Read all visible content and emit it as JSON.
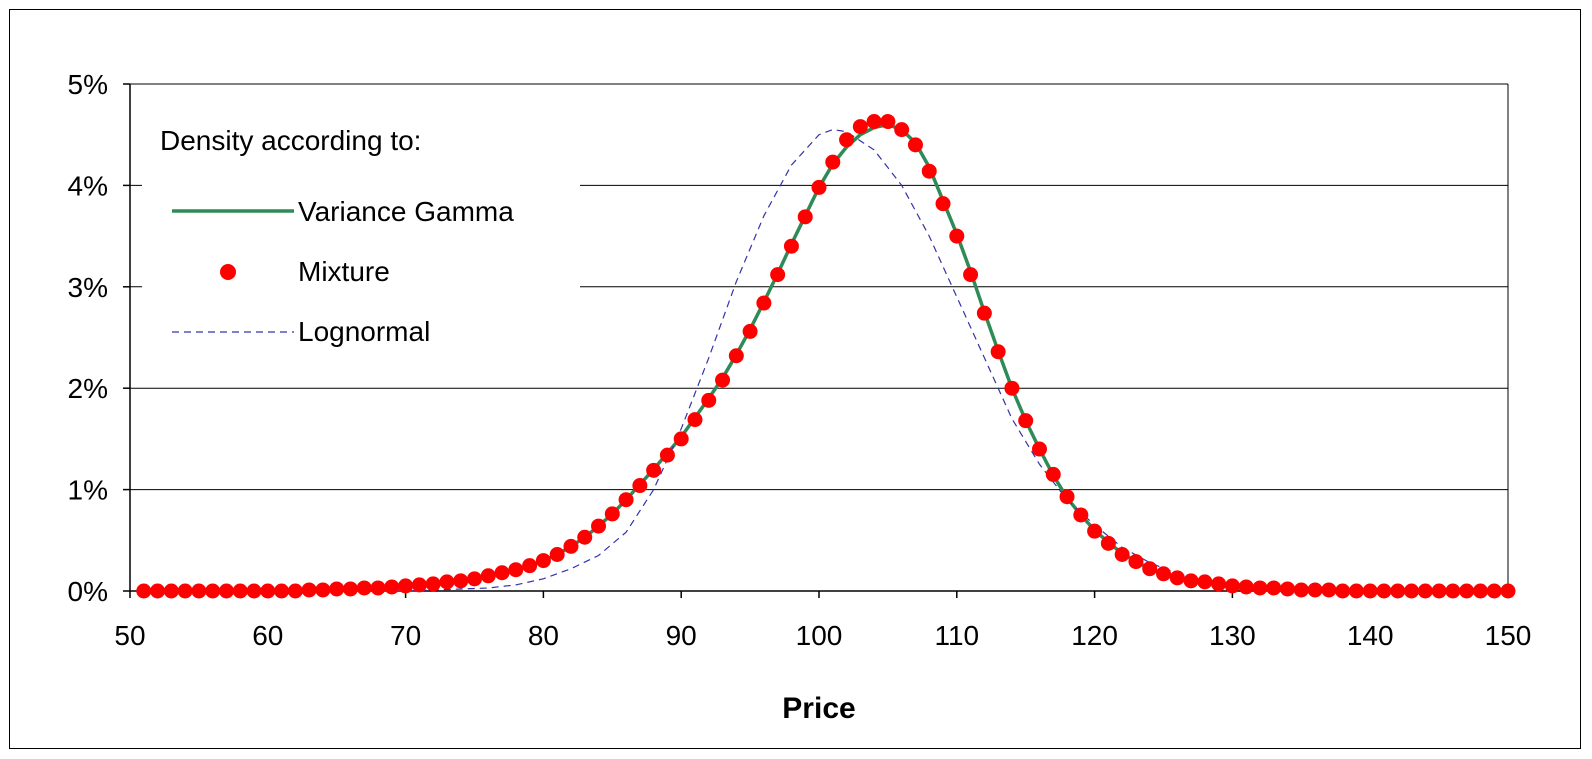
{
  "chart_data": {
    "type": "line",
    "title": "",
    "xlabel": "Price",
    "ylabel": "",
    "xlim": [
      50,
      150
    ],
    "ylim": [
      0,
      0.05
    ],
    "x_ticks": [
      50,
      60,
      70,
      80,
      90,
      100,
      110,
      120,
      130,
      140,
      150
    ],
    "y_ticks": [
      0,
      0.01,
      0.02,
      0.03,
      0.04,
      0.05
    ],
    "x_tick_labels": [
      "50",
      "60",
      "70",
      "80",
      "90",
      "100",
      "110",
      "120",
      "130",
      "140",
      "150"
    ],
    "y_tick_labels": [
      "0%",
      "1%",
      "2%",
      "3%",
      "4%",
      "5%"
    ],
    "grid": "horizontal",
    "legend": {
      "title": "Density according to:",
      "placement": "top-left",
      "entries": [
        "Variance Gamma",
        "Mixture",
        "Lognormal"
      ]
    },
    "series": [
      {
        "name": "Variance Gamma",
        "style": "line",
        "color": "#2e8b57",
        "x": [
          51,
          52,
          53,
          54,
          55,
          56,
          57,
          58,
          59,
          60,
          61,
          62,
          63,
          64,
          65,
          66,
          67,
          68,
          69,
          70,
          71,
          72,
          73,
          74,
          75,
          76,
          77,
          78,
          79,
          80,
          81,
          82,
          83,
          84,
          85,
          86,
          87,
          88,
          89,
          90,
          91,
          92,
          93,
          94,
          95,
          96,
          97,
          98,
          99,
          100,
          101,
          102,
          103,
          104,
          105,
          106,
          107,
          108,
          109,
          110,
          111,
          112,
          113,
          114,
          115,
          116,
          117,
          118,
          119,
          120,
          121,
          122,
          123,
          124,
          125,
          126,
          127,
          128,
          129,
          130,
          131,
          132,
          133,
          134,
          135,
          136,
          137,
          138,
          139,
          140,
          141,
          142,
          143,
          144,
          145,
          146,
          147,
          148,
          149,
          150
        ],
        "y": [
          0.0,
          0.0,
          0.0,
          0.0,
          0.0,
          0.0,
          0.0,
          0.0,
          0.0,
          0.0,
          0.0,
          0.0,
          0.0001,
          0.0001,
          0.0002,
          0.0002,
          0.0003,
          0.0003,
          0.0004,
          0.0005,
          0.0006,
          0.0007,
          0.0008,
          0.001,
          0.0012,
          0.0015,
          0.0018,
          0.0021,
          0.0025,
          0.003,
          0.0036,
          0.0044,
          0.0053,
          0.0064,
          0.0076,
          0.009,
          0.0105,
          0.012,
          0.0136,
          0.0152,
          0.0171,
          0.019,
          0.021,
          0.0233,
          0.0258,
          0.0285,
          0.0313,
          0.0342,
          0.037,
          0.0398,
          0.0421,
          0.0438,
          0.045,
          0.0457,
          0.046,
          0.0455,
          0.0442,
          0.0418,
          0.0385,
          0.0352,
          0.0315,
          0.0275,
          0.0237,
          0.02,
          0.0168,
          0.014,
          0.0114,
          0.0092,
          0.0075,
          0.006,
          0.0048,
          0.0037,
          0.0029,
          0.0022,
          0.0017,
          0.0013,
          0.001,
          0.0008,
          0.0006,
          0.0005,
          0.0004,
          0.0003,
          0.0002,
          0.0002,
          0.0001,
          0.0001,
          0.0001,
          0.0001,
          0.0,
          0.0,
          0.0,
          0.0,
          0.0,
          0.0,
          0.0,
          0.0,
          0.0,
          0.0,
          0.0,
          0.0
        ]
      },
      {
        "name": "Mixture",
        "style": "markers",
        "color": "#ff0000",
        "x": [
          51,
          52,
          53,
          54,
          55,
          56,
          57,
          58,
          59,
          60,
          61,
          62,
          63,
          64,
          65,
          66,
          67,
          68,
          69,
          70,
          71,
          72,
          73,
          74,
          75,
          76,
          77,
          78,
          79,
          80,
          81,
          82,
          83,
          84,
          85,
          86,
          87,
          88,
          89,
          90,
          91,
          92,
          93,
          94,
          95,
          96,
          97,
          98,
          99,
          100,
          101,
          102,
          103,
          104,
          105,
          106,
          107,
          108,
          109,
          110,
          111,
          112,
          113,
          114,
          115,
          116,
          117,
          118,
          119,
          120,
          121,
          122,
          123,
          124,
          125,
          126,
          127,
          128,
          129,
          130,
          131,
          132,
          133,
          134,
          135,
          136,
          137,
          138,
          139,
          140,
          141,
          142,
          143,
          144,
          145,
          146,
          147,
          148,
          149,
          150
        ],
        "y": [
          0.0,
          0.0,
          0.0,
          0.0,
          0.0,
          0.0,
          0.0,
          0.0,
          0.0,
          0.0,
          0.0,
          0.0,
          0.0001,
          0.0001,
          0.0002,
          0.0002,
          0.0003,
          0.0003,
          0.0004,
          0.0005,
          0.0006,
          0.0007,
          0.0009,
          0.001,
          0.0012,
          0.0015,
          0.0018,
          0.0021,
          0.0025,
          0.003,
          0.0036,
          0.0044,
          0.0053,
          0.0064,
          0.0076,
          0.009,
          0.0104,
          0.0119,
          0.0134,
          0.015,
          0.0169,
          0.0188,
          0.0208,
          0.0232,
          0.0256,
          0.0284,
          0.0312,
          0.034,
          0.0369,
          0.0398,
          0.0423,
          0.0445,
          0.0458,
          0.0463,
          0.0463,
          0.0455,
          0.044,
          0.0414,
          0.0382,
          0.035,
          0.0312,
          0.0274,
          0.0236,
          0.02,
          0.0168,
          0.014,
          0.0115,
          0.0093,
          0.0075,
          0.0059,
          0.0047,
          0.0036,
          0.0029,
          0.0022,
          0.0017,
          0.0013,
          0.001,
          0.0009,
          0.0007,
          0.0005,
          0.0004,
          0.0003,
          0.0003,
          0.0002,
          0.0001,
          0.0001,
          0.0001,
          0.0,
          0.0,
          0.0,
          0.0,
          0.0,
          0.0,
          0.0,
          0.0,
          0.0,
          0.0,
          0.0,
          0.0,
          0.0
        ]
      },
      {
        "name": "Lognormal",
        "style": "dashed-line",
        "color": "#3333aa",
        "x": [
          51,
          55,
          60,
          65,
          70,
          72,
          74,
          76,
          78,
          80,
          82,
          84,
          86,
          88,
          90,
          92,
          94,
          96,
          98,
          100,
          101,
          102,
          104,
          106,
          108,
          110,
          112,
          114,
          116,
          118,
          120,
          122,
          124,
          126,
          128,
          130,
          135,
          140,
          145,
          150
        ],
        "y": [
          0.0,
          0.0,
          0.0,
          0.0,
          0.0,
          0.0001,
          0.0002,
          0.0003,
          0.0006,
          0.0012,
          0.0022,
          0.0035,
          0.0058,
          0.01,
          0.016,
          0.023,
          0.0305,
          0.037,
          0.042,
          0.045,
          0.0455,
          0.0453,
          0.0435,
          0.04,
          0.035,
          0.029,
          0.023,
          0.017,
          0.0125,
          0.009,
          0.0065,
          0.0043,
          0.0028,
          0.0017,
          0.0011,
          0.0006,
          0.0002,
          0.0001,
          0.0,
          0.0
        ]
      }
    ]
  }
}
